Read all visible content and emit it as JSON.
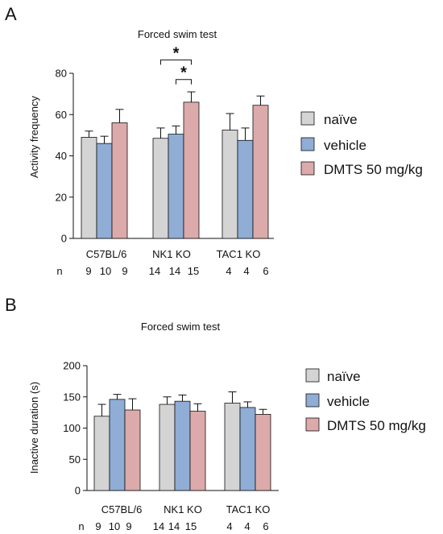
{
  "colors": {
    "naive": "#d4d4d4",
    "vehicle": "#8fadd5",
    "dmts": "#dcaaaa",
    "axis": "#111111"
  },
  "legend": {
    "items": [
      {
        "label": "naïve",
        "color": "#d4d4d4"
      },
      {
        "label": "vehicle",
        "color": "#8fadd5"
      },
      {
        "label": "DMTS 50 mg/kg",
        "color": "#dcaaaa"
      }
    ]
  },
  "panels": [
    {
      "letter": "A"
    },
    {
      "letter": "B"
    }
  ],
  "chart_data": [
    {
      "type": "bar",
      "title": "Forced swim test",
      "ylabel": "Activity frequency",
      "xlabel": "",
      "ylim": [
        0,
        80
      ],
      "yticks": [
        0,
        20,
        40,
        60,
        80
      ],
      "categories": [
        "C57BL/6",
        "NK1 KO",
        "TAC1 KO"
      ],
      "n_label": "n",
      "n_values": [
        [
          "9",
          "10",
          "9"
        ],
        [
          "14",
          "14",
          "15"
        ],
        [
          "4",
          "4",
          "6"
        ]
      ],
      "series": [
        {
          "name": "naïve",
          "values": [
            49,
            48.5,
            52.5
          ],
          "error": [
            3,
            5,
            8
          ]
        },
        {
          "name": "vehicle",
          "values": [
            46,
            50.5,
            47.5
          ],
          "error": [
            3.5,
            4,
            6
          ]
        },
        {
          "name": "DMTS 50 mg/kg",
          "values": [
            56,
            66,
            64.5
          ],
          "error": [
            6.5,
            5,
            4.5
          ]
        }
      ],
      "significance": [
        {
          "group": 1,
          "from_series": 0,
          "to_series": 2,
          "label": "*"
        },
        {
          "group": 1,
          "from_series": 1,
          "to_series": 2,
          "label": "*"
        }
      ]
    },
    {
      "type": "bar",
      "title": "Forced swim test",
      "ylabel": "Inactive duration (s)",
      "xlabel": "",
      "ylim": [
        0,
        200
      ],
      "yticks": [
        0,
        50,
        100,
        150,
        200
      ],
      "categories": [
        "C57BL/6",
        "NK1 KO",
        "TAC1 KO"
      ],
      "n_label": "n",
      "n_values": [
        [
          "9",
          "10",
          "9"
        ],
        [
          "14",
          "14",
          "15"
        ],
        [
          "4",
          "4",
          "6"
        ]
      ],
      "series": [
        {
          "name": "naïve",
          "values": [
            119,
            138,
            140
          ],
          "error": [
            19,
            12,
            18
          ]
        },
        {
          "name": "vehicle",
          "values": [
            146,
            143,
            133
          ],
          "error": [
            8,
            10,
            9
          ]
        },
        {
          "name": "DMTS 50 mg/kg",
          "values": [
            129,
            127,
            122
          ],
          "error": [
            18,
            12,
            8
          ]
        }
      ],
      "significance": []
    }
  ]
}
